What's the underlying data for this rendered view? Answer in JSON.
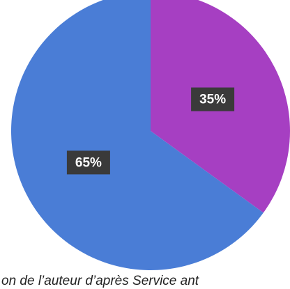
{
  "chart_data": {
    "type": "pie",
    "values": [
      35,
      65
    ],
    "value_labels": [
      "35%",
      "65%"
    ],
    "colors": [
      "#a63fc2",
      "#4a7dd6"
    ],
    "source": "on de l’auteur d’après Service ant"
  }
}
